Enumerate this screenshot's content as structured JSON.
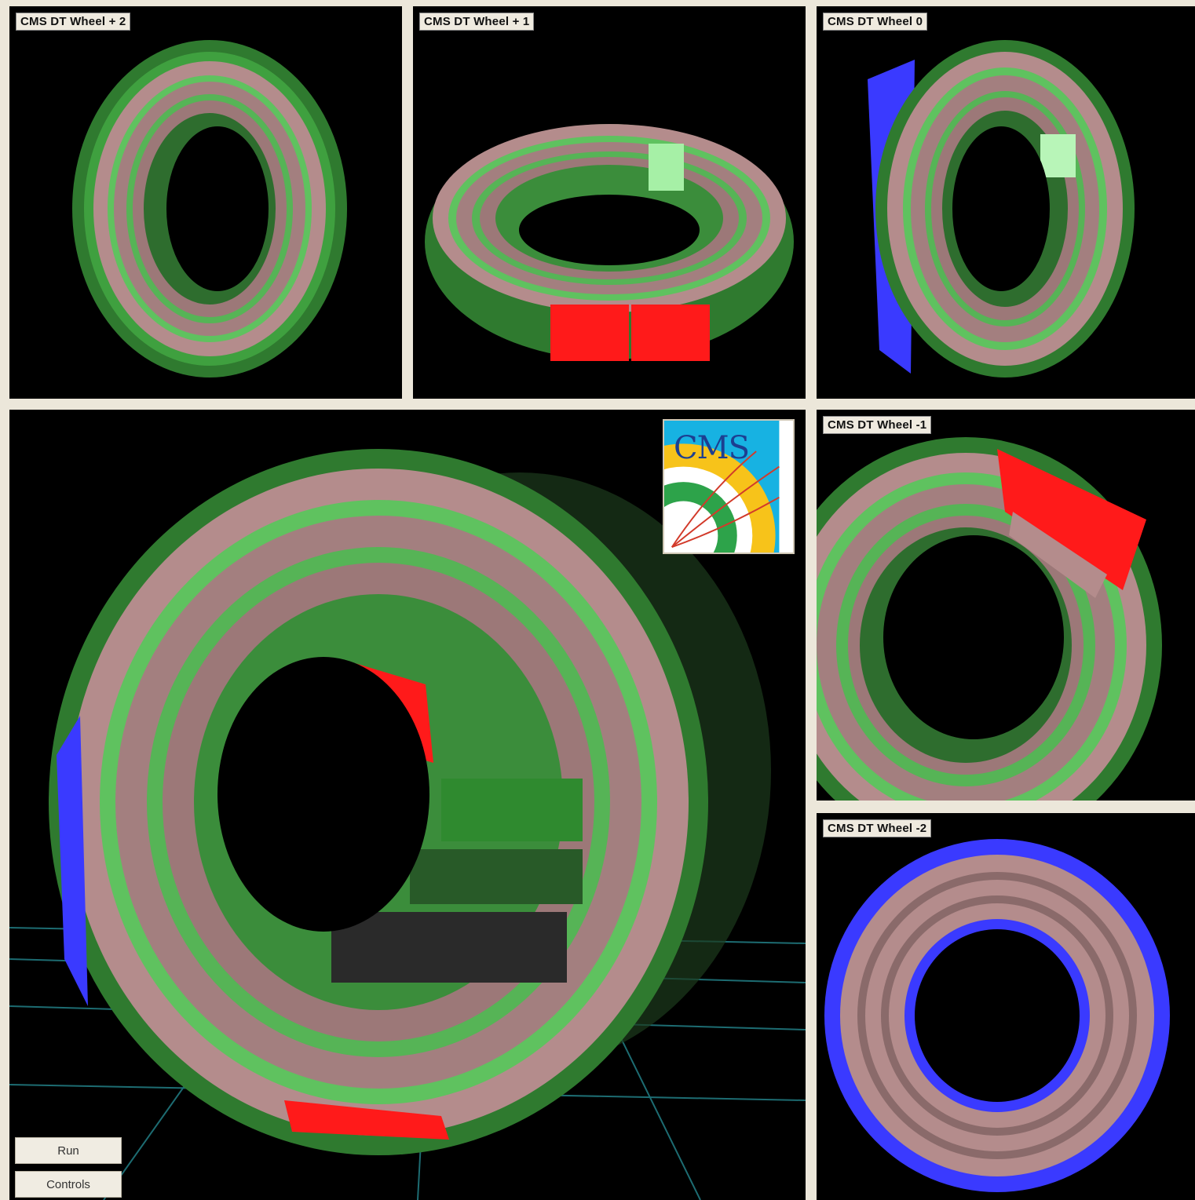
{
  "panels": {
    "wheel_plus2": {
      "title": "CMS DT Wheel + 2"
    },
    "wheel_plus1": {
      "title": "CMS DT Wheel + 1"
    },
    "wheel_0": {
      "title": "CMS DT Wheel 0"
    },
    "wheel_minus1": {
      "title": "CMS DT Wheel -1"
    },
    "wheel_minus2": {
      "title": "CMS DT Wheel -2"
    }
  },
  "main_view": {
    "logo_text": "CMS",
    "buttons": {
      "run": "Run",
      "controls": "Controls"
    }
  },
  "colors": {
    "chamber_green": "#3a9a3a",
    "chamber_light_green": "#8ee88e",
    "chamber_pink": "#b89090",
    "chamber_red": "#ff1a1a",
    "chamber_blue": "#3a3aff",
    "grid_cyan": "#1d6c72",
    "background": "#000000"
  }
}
